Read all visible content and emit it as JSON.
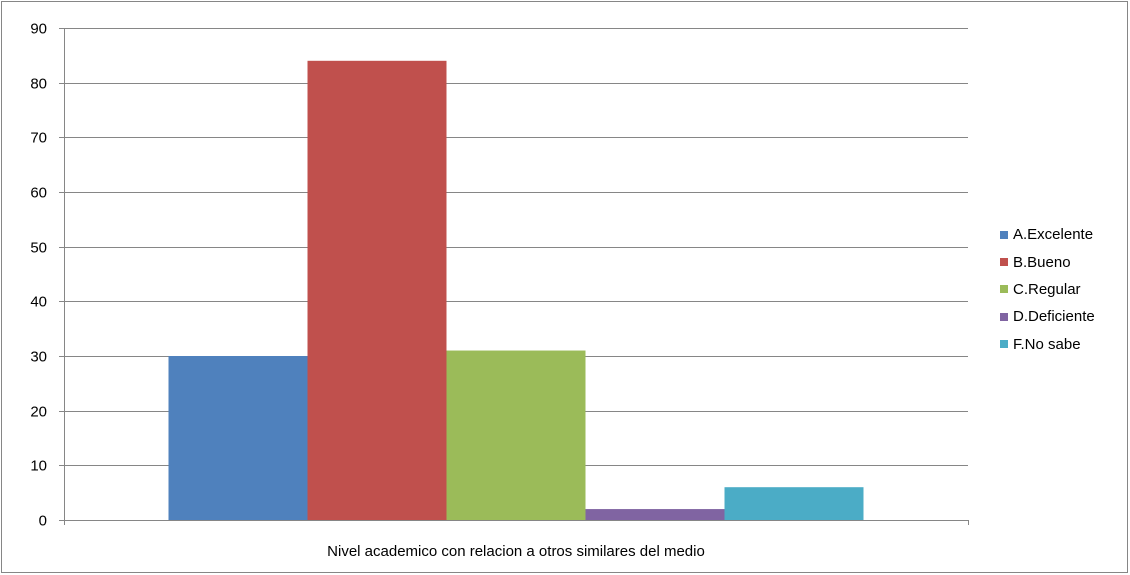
{
  "chart_data": {
    "type": "bar",
    "title": "",
    "xlabel": "",
    "ylabel": "",
    "category_label": "Nivel academico con relacion a otros similares del medio",
    "ylim": [
      0,
      90
    ],
    "yticks": [
      0,
      10,
      20,
      30,
      40,
      50,
      60,
      70,
      80,
      90
    ],
    "grid": true,
    "legend_position": "right",
    "series": [
      {
        "name": "A.Excelente",
        "values": [
          30
        ],
        "color": "#4F81BD"
      },
      {
        "name": "B.Bueno",
        "values": [
          84
        ],
        "color": "#C0504D"
      },
      {
        "name": "C.Regular",
        "values": [
          31
        ],
        "color": "#9BBB59"
      },
      {
        "name": "D.Deficiente",
        "values": [
          2
        ],
        "color": "#8064A2"
      },
      {
        "name": "F.No sabe",
        "values": [
          6
        ],
        "color": "#4BACC6"
      }
    ]
  }
}
